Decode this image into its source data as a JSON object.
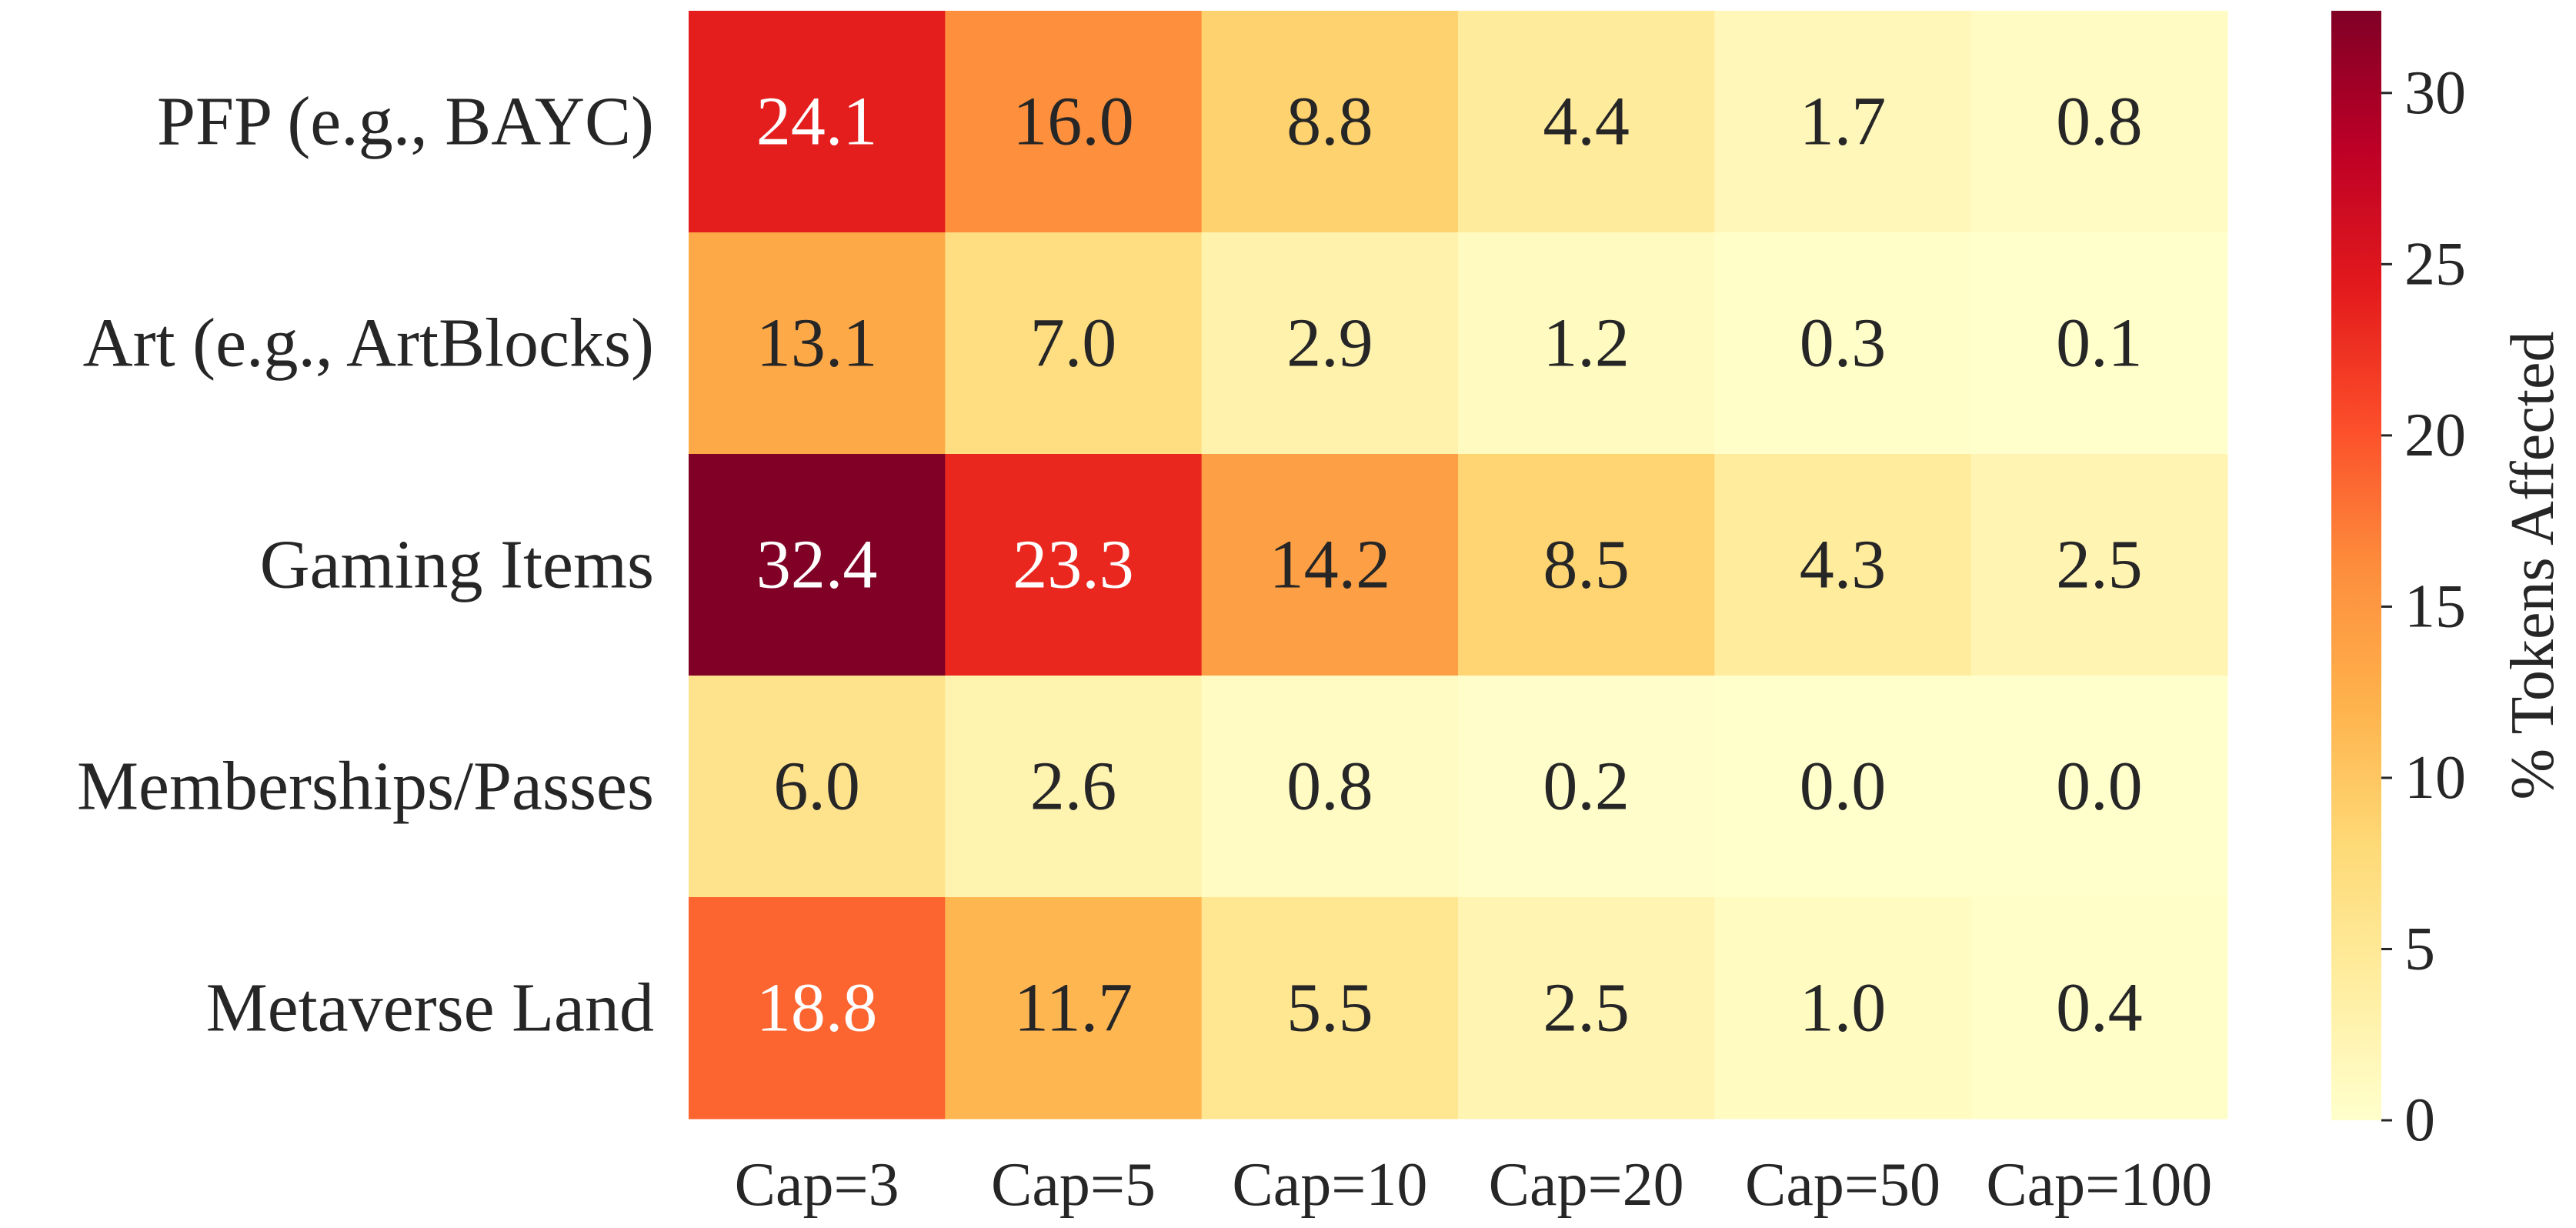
{
  "chart_data": {
    "type": "heatmap",
    "title": "",
    "xlabel": "",
    "ylabel": "",
    "rows": [
      "PFP (e.g., BAYC)",
      "Art (e.g., ArtBlocks)",
      "Gaming Items",
      "Memberships/Passes",
      "Metaverse Land"
    ],
    "columns": [
      "Cap=3",
      "Cap=5",
      "Cap=10",
      "Cap=20",
      "Cap=50",
      "Cap=100"
    ],
    "values": [
      [
        24.1,
        16.0,
        8.8,
        4.4,
        1.7,
        0.8
      ],
      [
        13.1,
        7.0,
        2.9,
        1.2,
        0.3,
        0.1
      ],
      [
        32.4,
        23.3,
        14.2,
        8.5,
        4.3,
        2.5
      ],
      [
        6.0,
        2.6,
        0.8,
        0.2,
        0.0,
        0.0
      ],
      [
        18.8,
        11.7,
        5.5,
        2.5,
        1.0,
        0.4
      ]
    ],
    "value_format": "0.1f",
    "colorbar": {
      "label": "% Tokens Affected",
      "range": [
        0,
        32.4
      ],
      "ticks": [
        0,
        5,
        10,
        15,
        20,
        25,
        30
      ],
      "colormap": "YlOrRd",
      "colormap_stops": [
        "#ffffcc",
        "#ffeda0",
        "#fed976",
        "#feb24c",
        "#fd8d3c",
        "#fc4e2a",
        "#e31a1c",
        "#bd0026",
        "#800026"
      ]
    }
  }
}
